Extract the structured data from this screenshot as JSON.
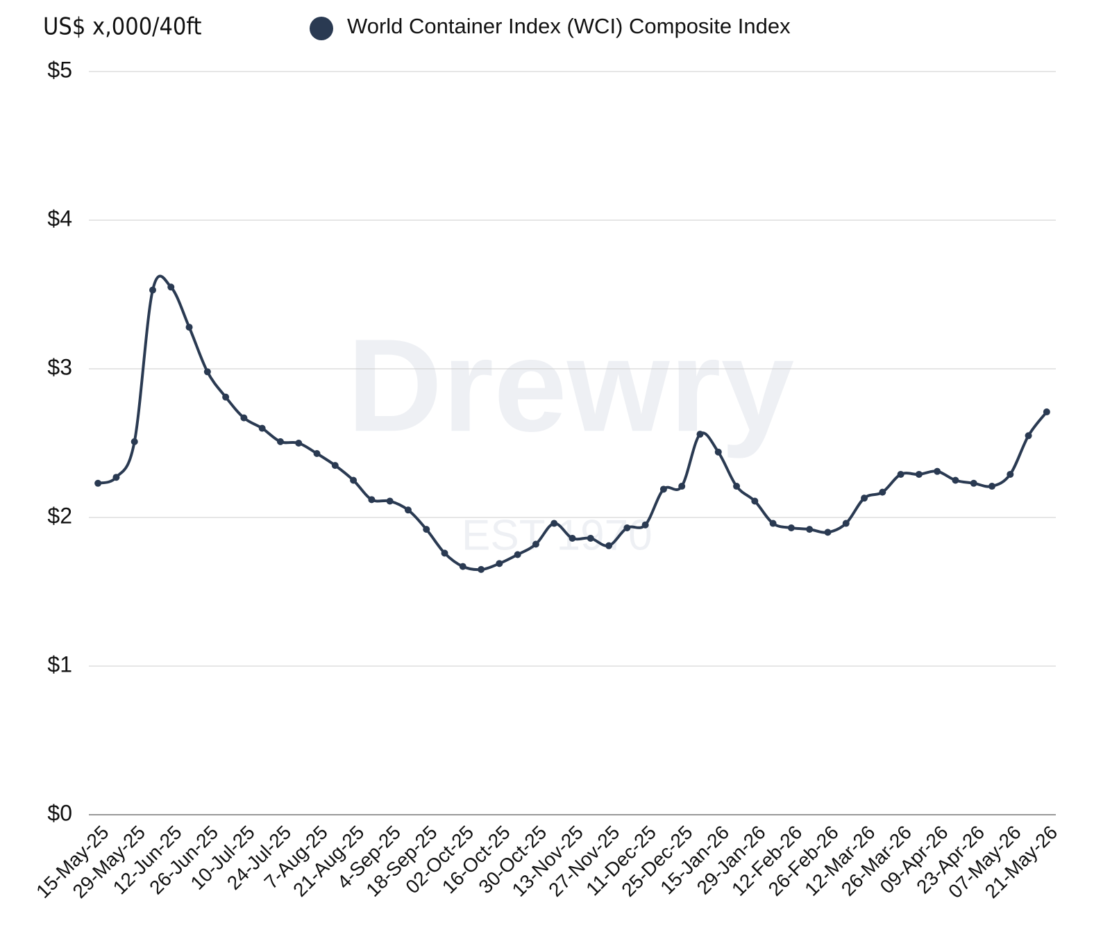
{
  "chart_data": {
    "type": "line",
    "title": "US$ x,000/40ft",
    "watermark": "Drewry",
    "watermark_sub": "EST 1970",
    "categories": [
      "15-May-25",
      null,
      "29-May-25",
      null,
      "12-Jun-25",
      null,
      "26-Jun-25",
      null,
      "10-Jul-25",
      null,
      "24-Jul-25",
      null,
      "7-Aug-25",
      null,
      "21-Aug-25",
      null,
      "4-Sep-25",
      null,
      "18-Sep-25",
      null,
      "02-Oct-25",
      null,
      "16-Oct-25",
      null,
      "30-Oct-25",
      null,
      "13-Nov-25",
      null,
      "27-Nov-25",
      null,
      "11-Dec-25",
      null,
      "25-Dec-25",
      null,
      "15-Jan-26",
      null,
      "29-Jan-26",
      null,
      "12-Feb-26",
      null,
      "26-Feb-26",
      null,
      "12-Mar-26",
      null,
      "26-Mar-26",
      null,
      "09-Apr-26",
      null,
      "23-Apr-26",
      null,
      "07-May-26",
      null,
      "21-May-26"
    ],
    "series": [
      {
        "name": "World Container Index (WCI) Composite Index",
        "color": "#2a3a52",
        "values": [
          2.23,
          2.27,
          2.51,
          3.53,
          3.55,
          3.28,
          2.98,
          2.81,
          2.67,
          2.6,
          2.51,
          2.5,
          2.43,
          2.35,
          2.25,
          2.12,
          2.11,
          2.05,
          1.92,
          1.76,
          1.67,
          1.65,
          1.69,
          1.75,
          1.82,
          1.96,
          1.86,
          1.86,
          1.81,
          1.93,
          1.95,
          2.19,
          2.21,
          2.56,
          2.44,
          2.21,
          2.11,
          1.96,
          1.93,
          1.92,
          1.9,
          1.96,
          2.13,
          2.17,
          2.29,
          2.29,
          2.31,
          2.25,
          2.23,
          2.21,
          2.29,
          2.55,
          2.71
        ]
      }
    ],
    "ylim": [
      0,
      5
    ],
    "yticks": [
      {
        "value": 0,
        "label": "$0"
      },
      {
        "value": 1,
        "label": "$1"
      },
      {
        "value": 2,
        "label": "$2"
      },
      {
        "value": 3,
        "label": "$3"
      },
      {
        "value": 4,
        "label": "$4"
      },
      {
        "value": 5,
        "label": "$5"
      }
    ],
    "grid": true
  }
}
